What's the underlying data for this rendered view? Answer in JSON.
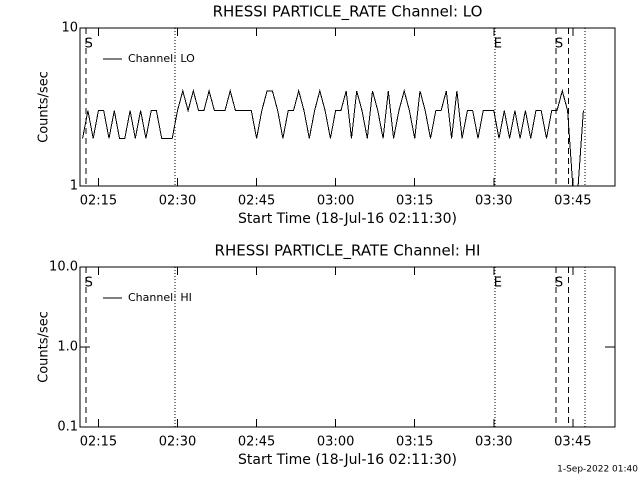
{
  "chart_data": [
    {
      "type": "line",
      "title": "RHESSI PARTICLE_RATE Channel: LO",
      "xlabel": "Start Time (18-Jul-16 02:11:30)",
      "ylabel": "Counts/sec",
      "xlim": [
        131.5,
        233
      ],
      "xticks": [
        {
          "value": 135,
          "label": "02:15"
        },
        {
          "value": 150,
          "label": "02:30"
        },
        {
          "value": 165,
          "label": "02:45"
        },
        {
          "value": 180,
          "label": "03:00"
        },
        {
          "value": 195,
          "label": "03:15"
        },
        {
          "value": 210,
          "label": "03:30"
        },
        {
          "value": 225,
          "label": "03:45"
        }
      ],
      "ylim": [
        1,
        10
      ],
      "yticks": [
        1,
        10
      ],
      "ylog": true,
      "grid": false,
      "legend": "upper left",
      "markers": [
        {
          "x": 132.6,
          "style": "dashed",
          "label": "S"
        },
        {
          "x": 149.5,
          "style": "dotted"
        },
        {
          "x": 210.2,
          "style": "dotted",
          "label": "E"
        },
        {
          "x": 221.8,
          "style": "dashed",
          "label": "S"
        },
        {
          "x": 224.2,
          "style": "dashed"
        },
        {
          "x": 227.3,
          "style": "dotted"
        }
      ],
      "x": [
        132,
        133,
        134,
        135,
        136,
        137,
        138,
        139,
        140,
        141,
        142,
        143,
        144,
        145,
        146,
        147,
        148,
        149,
        150,
        151,
        152,
        153,
        154,
        155,
        156,
        157,
        158,
        159,
        160,
        161,
        162,
        163,
        164,
        165,
        166,
        167,
        168,
        169,
        170,
        171,
        172,
        173,
        174,
        175,
        176,
        177,
        178,
        179,
        180,
        181,
        182,
        183,
        184,
        185,
        186,
        187,
        188,
        189,
        190,
        191,
        192,
        193,
        194,
        195,
        196,
        197,
        198,
        199,
        200,
        201,
        202,
        203,
        204,
        205,
        206,
        207,
        208,
        209,
        210,
        211,
        212,
        213,
        214,
        215,
        216,
        217,
        218,
        219,
        220,
        221,
        222,
        223,
        224,
        225,
        226,
        227
      ],
      "series": [
        {
          "name": "Channel: LO",
          "color": "#000000",
          "values": [
            2,
            3,
            2,
            3,
            3,
            2,
            3,
            2,
            2,
            3,
            2,
            3,
            2,
            3,
            3,
            2,
            2,
            2,
            3,
            4,
            3,
            4,
            3,
            3,
            4,
            3,
            3,
            3,
            4,
            3,
            3,
            3,
            3,
            2,
            3,
            4,
            4,
            3,
            2,
            3,
            3,
            4,
            3,
            2,
            3,
            4,
            3,
            2,
            3,
            3,
            4,
            2,
            4,
            3,
            2,
            4,
            3,
            2,
            4,
            2,
            3,
            4,
            3,
            2,
            4,
            3,
            2,
            3,
            3,
            4,
            2,
            4,
            2,
            3,
            3,
            2,
            3,
            3,
            3,
            2,
            3,
            2,
            3,
            2,
            3,
            2,
            3,
            3,
            2,
            3,
            3,
            4,
            3,
            1,
            1,
            3
          ]
        }
      ]
    },
    {
      "type": "line",
      "title": "RHESSI PARTICLE_RATE Channel: HI",
      "xlabel": "Start Time (18-Jul-16 02:11:30)",
      "ylabel": "Counts/sec",
      "xlim": [
        131.5,
        233
      ],
      "xticks": [
        {
          "value": 135,
          "label": "02:15"
        },
        {
          "value": 150,
          "label": "02:30"
        },
        {
          "value": 165,
          "label": "02:45"
        },
        {
          "value": 180,
          "label": "03:00"
        },
        {
          "value": 195,
          "label": "03:15"
        },
        {
          "value": 210,
          "label": "03:30"
        },
        {
          "value": 225,
          "label": "03:45"
        }
      ],
      "ylim": [
        0.1,
        10
      ],
      "yticks": [
        0.1,
        {
          "value": 1,
          "label": "1.0"
        },
        {
          "value": 10,
          "label": "10.0"
        }
      ],
      "ylog": true,
      "grid": false,
      "legend": "upper left",
      "markers": [
        {
          "x": 132.6,
          "style": "dashed",
          "label": "S"
        },
        {
          "x": 149.5,
          "style": "dotted"
        },
        {
          "x": 210.2,
          "style": "dotted",
          "label": "E"
        },
        {
          "x": 221.8,
          "style": "dashed",
          "label": "S"
        },
        {
          "x": 224.2,
          "style": "dashed"
        },
        {
          "x": 227.3,
          "style": "dotted"
        }
      ],
      "x": [],
      "series": [
        {
          "name": "Channel: HI",
          "color": "#000000",
          "values": []
        }
      ]
    }
  ],
  "footer": "1-Sep-2022 01:40"
}
